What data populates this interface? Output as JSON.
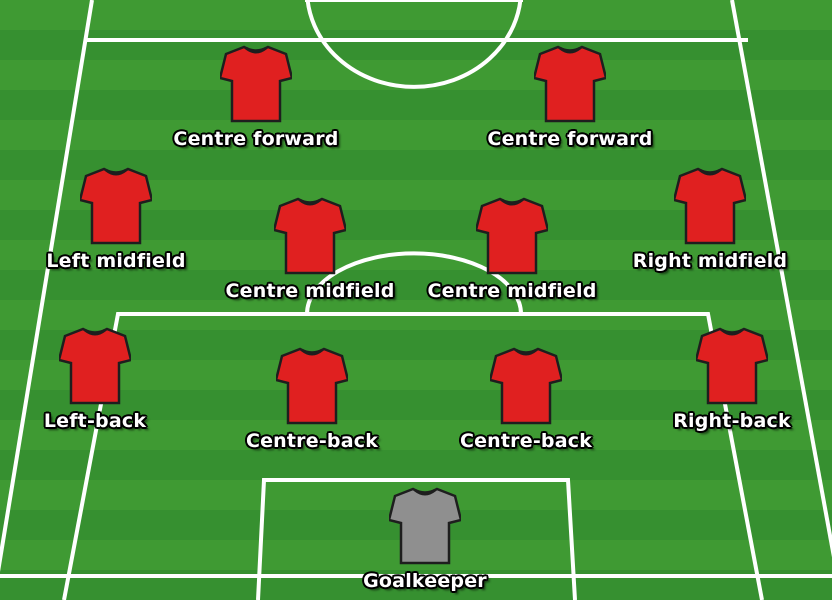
{
  "colors": {
    "outfield_shirt": "#e02020",
    "goalkeeper_shirt": "#8f8f8f",
    "line": "#ffffff"
  },
  "players": [
    {
      "id": "cf-left",
      "label": "Centre forward",
      "shirt": "outfield"
    },
    {
      "id": "cf-right",
      "label": "Centre forward",
      "shirt": "outfield"
    },
    {
      "id": "lm",
      "label": "Left midfield",
      "shirt": "outfield"
    },
    {
      "id": "cm-left",
      "label": "Centre midfield",
      "shirt": "outfield"
    },
    {
      "id": "cm-right",
      "label": "Centre midfield",
      "shirt": "outfield"
    },
    {
      "id": "rm",
      "label": "Right midfield",
      "shirt": "outfield"
    },
    {
      "id": "lb",
      "label": "Left-back",
      "shirt": "outfield"
    },
    {
      "id": "cb-left",
      "label": "Centre-back",
      "shirt": "outfield"
    },
    {
      "id": "cb-right",
      "label": "Centre-back",
      "shirt": "outfield"
    },
    {
      "id": "rb",
      "label": "Right-back",
      "shirt": "outfield"
    },
    {
      "id": "gk",
      "label": "Goalkeeper",
      "shirt": "goalkeeper"
    }
  ]
}
